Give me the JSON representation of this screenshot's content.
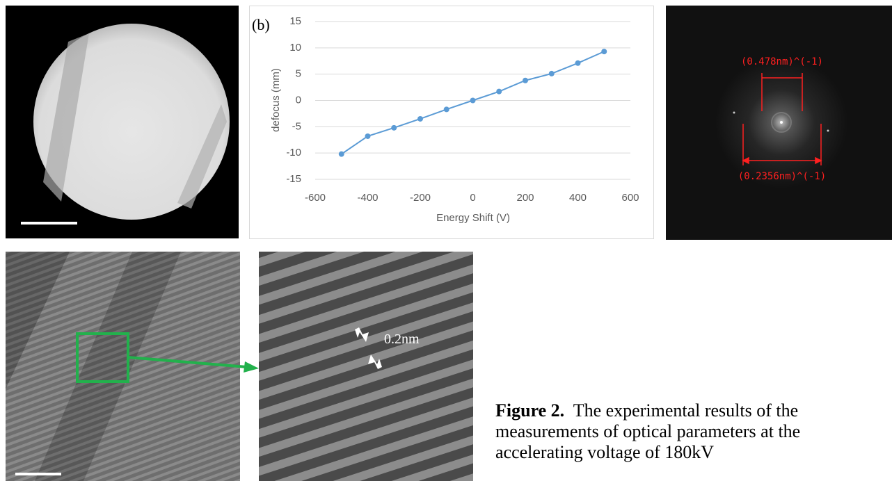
{
  "chart_data": {
    "type": "line",
    "panel_label": "(b)",
    "x_label": "Energy Shift (V)",
    "y_label": "defocus (mm)",
    "x": [
      -500,
      -400,
      -300,
      -200,
      -100,
      0,
      100,
      200,
      300,
      400,
      500
    ],
    "values": [
      -10.2,
      -6.8,
      -5.2,
      -3.5,
      -1.7,
      0,
      1.7,
      3.8,
      5.1,
      7.1,
      9.3
    ],
    "color": "#5b9bd5",
    "xlim": [
      -600,
      600
    ],
    "xticks": [
      -600,
      -400,
      -200,
      0,
      200,
      400,
      600
    ],
    "ylim": [
      -15,
      15
    ],
    "yticks": [
      -15,
      -10,
      -5,
      0,
      5,
      10,
      15
    ],
    "grid": true
  },
  "fft_labels": [
    "(0.478nm)^(-1)",
    "(0.2356nm)^(-1)"
  ],
  "lattice_label": "0.2nm",
  "caption": {
    "label": "Figure 2.",
    "text": "The experimental results of the measurements of optical parameters at the accelerating voltage of 180kV"
  }
}
